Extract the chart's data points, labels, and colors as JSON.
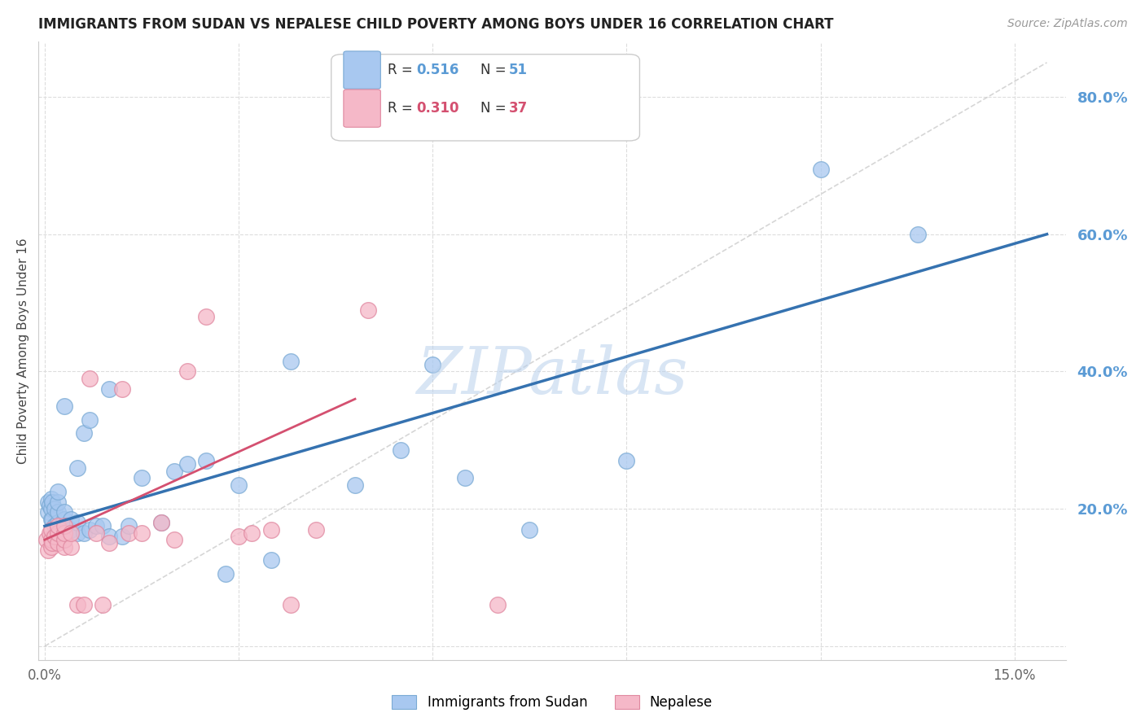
{
  "title": "IMMIGRANTS FROM SUDAN VS NEPALESE CHILD POVERTY AMONG BOYS UNDER 16 CORRELATION CHART",
  "source": "Source: ZipAtlas.com",
  "ylabel_label": "Child Poverty Among Boys Under 16",
  "xlim": [
    -0.001,
    0.158
  ],
  "ylim": [
    -0.02,
    0.88
  ],
  "x_tick_positions": [
    0.0,
    0.03,
    0.06,
    0.09,
    0.12,
    0.15
  ],
  "x_tick_labels": [
    "0.0%",
    "",
    "",
    "",
    "",
    "15.0%"
  ],
  "y_tick_positions": [
    0.0,
    0.2,
    0.4,
    0.6,
    0.8
  ],
  "y_tick_labels": [
    "",
    "20.0%",
    "40.0%",
    "60.0%",
    "80.0%"
  ],
  "series1_label": "Immigrants from Sudan",
  "series1_R": "0.516",
  "series1_N": "51",
  "series1_color": "#A8C8F0",
  "series1_edge_color": "#7AAAD4",
  "series1_line_color": "#3572B0",
  "series2_label": "Nepalese",
  "series2_R": "0.310",
  "series2_N": "37",
  "series2_color": "#F5B8C8",
  "series2_edge_color": "#E088A0",
  "series2_line_color": "#D45070",
  "watermark": "ZIPatlas",
  "background_color": "#FFFFFF",
  "grid_color": "#DDDDDD",
  "right_tick_color": "#5B9BD5",
  "diag_line_color": "#CCCCCC",
  "series1_x": [
    0.0005,
    0.0005,
    0.0008,
    0.001,
    0.001,
    0.001,
    0.0012,
    0.0012,
    0.0015,
    0.0015,
    0.002,
    0.002,
    0.002,
    0.002,
    0.002,
    0.003,
    0.003,
    0.003,
    0.003,
    0.004,
    0.004,
    0.005,
    0.005,
    0.005,
    0.006,
    0.006,
    0.007,
    0.007,
    0.008,
    0.009,
    0.01,
    0.01,
    0.012,
    0.013,
    0.015,
    0.018,
    0.02,
    0.022,
    0.025,
    0.028,
    0.03,
    0.035,
    0.038,
    0.048,
    0.055,
    0.06,
    0.065,
    0.075,
    0.09,
    0.12,
    0.135
  ],
  "series1_y": [
    0.195,
    0.21,
    0.205,
    0.185,
    0.2,
    0.215,
    0.185,
    0.21,
    0.175,
    0.2,
    0.17,
    0.18,
    0.195,
    0.21,
    0.225,
    0.175,
    0.185,
    0.195,
    0.35,
    0.17,
    0.185,
    0.165,
    0.18,
    0.26,
    0.165,
    0.31,
    0.17,
    0.33,
    0.175,
    0.175,
    0.16,
    0.375,
    0.16,
    0.175,
    0.245,
    0.18,
    0.255,
    0.265,
    0.27,
    0.105,
    0.235,
    0.125,
    0.415,
    0.235,
    0.285,
    0.41,
    0.245,
    0.17,
    0.27,
    0.695,
    0.6
  ],
  "series2_x": [
    0.0003,
    0.0005,
    0.0008,
    0.001,
    0.001,
    0.001,
    0.0012,
    0.0015,
    0.002,
    0.002,
    0.002,
    0.003,
    0.003,
    0.003,
    0.003,
    0.004,
    0.004,
    0.005,
    0.006,
    0.007,
    0.008,
    0.009,
    0.01,
    0.012,
    0.013,
    0.015,
    0.018,
    0.02,
    0.022,
    0.025,
    0.03,
    0.032,
    0.035,
    0.038,
    0.042,
    0.05,
    0.07
  ],
  "series2_y": [
    0.155,
    0.14,
    0.165,
    0.145,
    0.155,
    0.17,
    0.15,
    0.16,
    0.15,
    0.165,
    0.175,
    0.145,
    0.155,
    0.165,
    0.175,
    0.145,
    0.165,
    0.06,
    0.06,
    0.39,
    0.165,
    0.06,
    0.15,
    0.375,
    0.165,
    0.165,
    0.18,
    0.155,
    0.4,
    0.48,
    0.16,
    0.165,
    0.17,
    0.06,
    0.17,
    0.49,
    0.06
  ],
  "blue_line_x0": 0.0,
  "blue_line_y0": 0.175,
  "blue_line_x1": 0.155,
  "blue_line_y1": 0.6,
  "pink_line_x0": 0.0,
  "pink_line_y0": 0.155,
  "pink_line_x1": 0.048,
  "pink_line_y1": 0.36
}
